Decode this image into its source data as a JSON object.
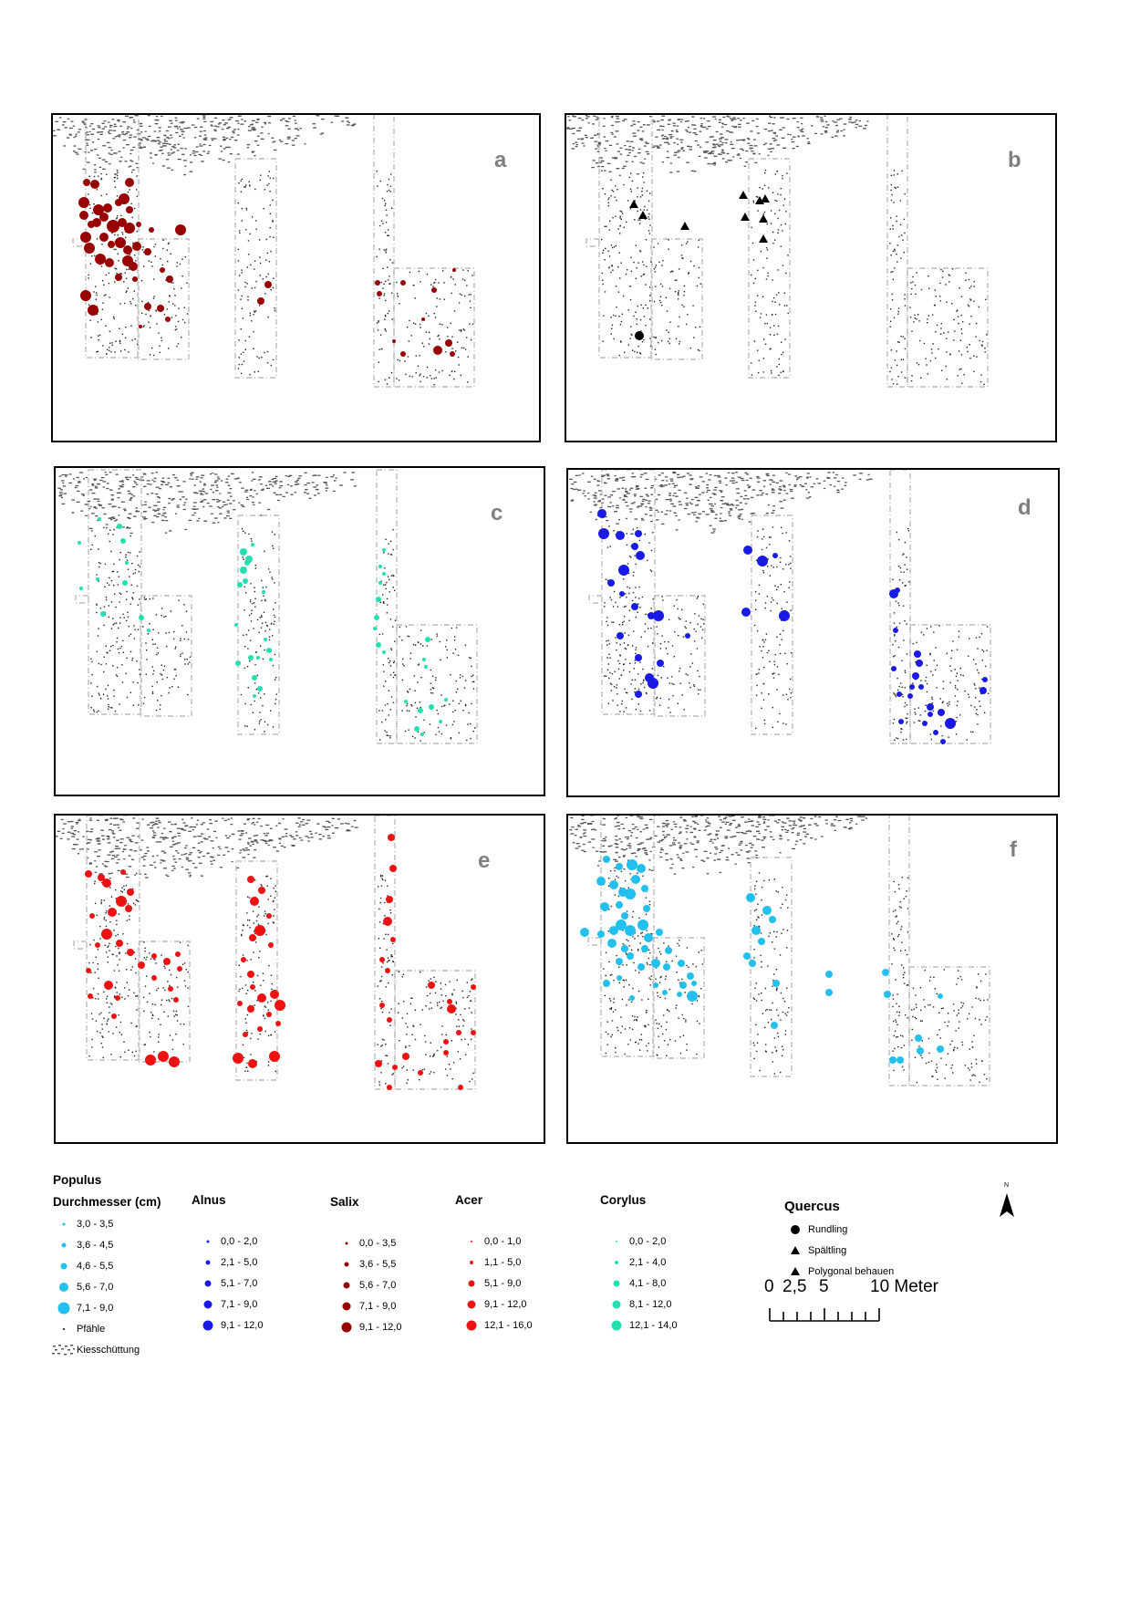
{
  "panels": [
    {
      "letter": "a",
      "species": "Salix",
      "color": "#990000"
    },
    {
      "letter": "b",
      "species": "Quercus",
      "color": "#000000"
    },
    {
      "letter": "c",
      "species": "Corylus",
      "color": "#22e0b0"
    },
    {
      "letter": "d",
      "species": "Alnus",
      "color": "#1a1ae6"
    },
    {
      "letter": "e",
      "species": "Acer",
      "color": "#ee1111"
    },
    {
      "letter": "f",
      "species": "Populus",
      "color": "#22c0ee"
    }
  ],
  "legend": {
    "populus": {
      "title": "Populus",
      "subtitle": "Durchmesser (cm)",
      "color": "#22c0ee",
      "classes": [
        "3,0 - 3,5",
        "3,6 - 4,5",
        "4,6 - 5,5",
        "5,6 - 7,0",
        "7,1 - 9,0"
      ],
      "pfaehle": "Pfähle",
      "kies": "Kiesschüttung"
    },
    "alnus": {
      "title": "Alnus",
      "color": "#1a1ae6",
      "classes": [
        "0,0 - 2,0",
        "2,1 - 5,0",
        "5,1 - 7,0",
        "7,1 - 9,0",
        "9,1 - 12,0"
      ]
    },
    "salix": {
      "title": "Salix",
      "color": "#990000",
      "classes": [
        "0,0 - 3,5",
        "3,6 - 5,5",
        "5,6 - 7,0",
        "7,1 - 9,0",
        "9,1 - 12,0"
      ]
    },
    "acer": {
      "title": "Acer",
      "color": "#ee1111",
      "classes": [
        "0,0 - 1,0",
        "1,1 - 5,0",
        "5,1 - 9,0",
        "9,1 - 12,0",
        "12,1 - 16,0"
      ]
    },
    "corylus": {
      "title": "Corylus",
      "color": "#22e0b0",
      "classes": [
        "0,0 - 2,0",
        "2,1 - 4,0",
        "4,1 - 8,0",
        "8,1 - 12,0",
        "12,1 - 14,0"
      ]
    },
    "quercus": {
      "title": "Quercus",
      "items": [
        "Rundling",
        "Spältling",
        "Polygonal behauen"
      ]
    }
  },
  "north": "N",
  "scalebar": {
    "labels": [
      "0",
      "2,5",
      "5",
      "10 Meter"
    ]
  }
}
